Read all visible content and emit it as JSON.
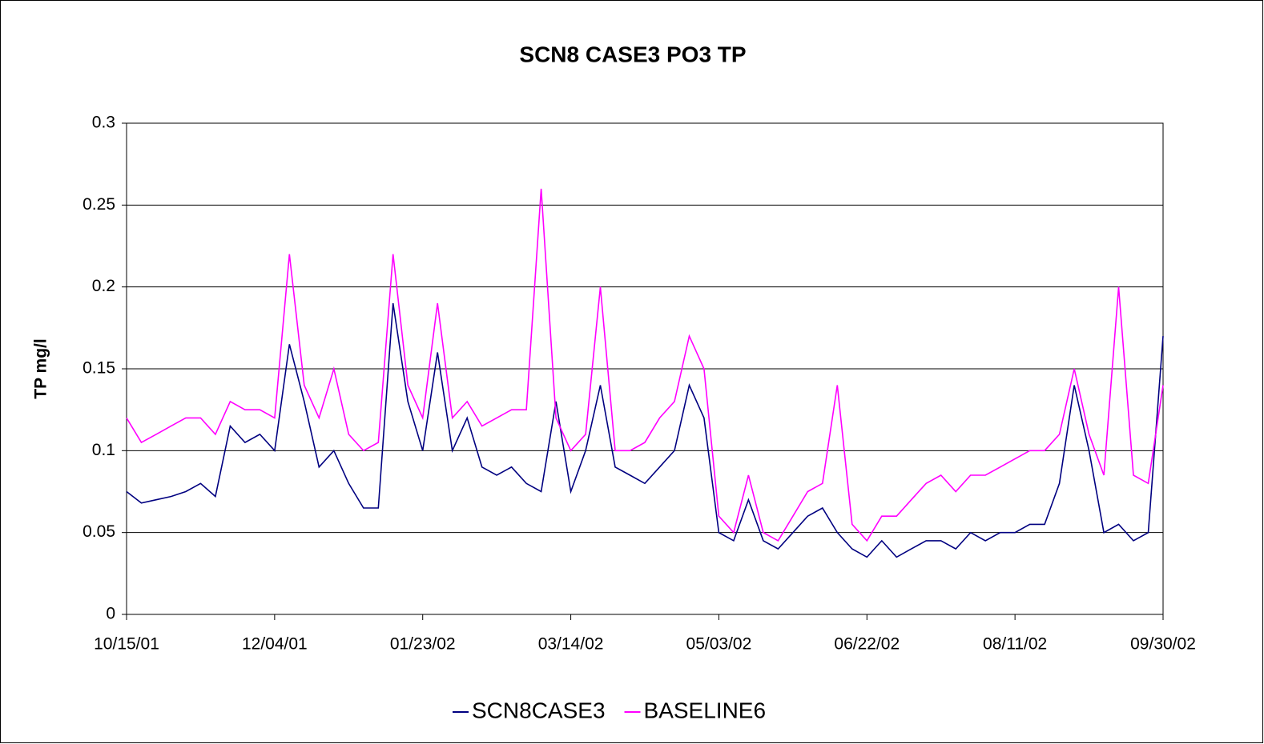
{
  "chart_data": {
    "type": "line",
    "title": "SCN8 CASE3 PO3 TP",
    "ylabel": "TP mg/l",
    "x": [
      "10/15/01",
      "10/20/01",
      "10/25/01",
      "10/30/01",
      "11/04/01",
      "11/09/01",
      "11/14/01",
      "11/19/01",
      "11/24/01",
      "11/29/01",
      "12/04/01",
      "12/09/01",
      "12/14/01",
      "12/19/01",
      "12/24/01",
      "12/29/01",
      "01/03/02",
      "01/08/02",
      "01/13/02",
      "01/18/02",
      "01/23/02",
      "01/28/02",
      "02/02/02",
      "02/07/02",
      "02/12/02",
      "02/17/02",
      "02/22/02",
      "02/27/02",
      "03/04/02",
      "03/09/02",
      "03/14/02",
      "03/19/02",
      "03/24/02",
      "03/29/02",
      "04/03/02",
      "04/08/02",
      "04/13/02",
      "04/18/02",
      "04/23/02",
      "04/28/02",
      "05/03/02",
      "05/08/02",
      "05/13/02",
      "05/18/02",
      "05/23/02",
      "05/28/02",
      "06/02/02",
      "06/07/02",
      "06/12/02",
      "06/17/02",
      "06/22/02",
      "06/27/02",
      "07/02/02",
      "07/07/02",
      "07/12/02",
      "07/17/02",
      "07/22/02",
      "07/27/02",
      "08/01/02",
      "08/06/02",
      "08/11/02",
      "08/16/02",
      "08/21/02",
      "08/26/02",
      "08/31/02",
      "09/05/02",
      "09/10/02",
      "09/15/02",
      "09/20/02",
      "09/25/02",
      "09/30/02"
    ],
    "series": [
      {
        "name": "SCN8CASE3",
        "color": "#000080",
        "values": [
          0.075,
          0.068,
          0.07,
          0.072,
          0.075,
          0.08,
          0.072,
          0.115,
          0.105,
          0.11,
          0.1,
          0.165,
          0.13,
          0.09,
          0.1,
          0.08,
          0.065,
          0.065,
          0.19,
          0.13,
          0.1,
          0.16,
          0.1,
          0.12,
          0.09,
          0.085,
          0.09,
          0.08,
          0.075,
          0.13,
          0.075,
          0.1,
          0.14,
          0.09,
          0.085,
          0.08,
          0.09,
          0.1,
          0.14,
          0.12,
          0.05,
          0.045,
          0.07,
          0.045,
          0.04,
          0.05,
          0.06,
          0.065,
          0.05,
          0.04,
          0.035,
          0.045,
          0.035,
          0.04,
          0.045,
          0.045,
          0.04,
          0.05,
          0.045,
          0.05,
          0.05,
          0.055,
          0.055,
          0.08,
          0.14,
          0.1,
          0.05,
          0.055,
          0.045,
          0.05,
          0.17
        ]
      },
      {
        "name": "BASELINE6",
        "color": "#ff00ff",
        "values": [
          0.12,
          0.105,
          0.11,
          0.115,
          0.12,
          0.12,
          0.11,
          0.13,
          0.125,
          0.125,
          0.12,
          0.22,
          0.14,
          0.12,
          0.15,
          0.11,
          0.1,
          0.105,
          0.22,
          0.14,
          0.12,
          0.19,
          0.12,
          0.13,
          0.115,
          0.12,
          0.125,
          0.125,
          0.26,
          0.12,
          0.1,
          0.11,
          0.2,
          0.1,
          0.1,
          0.105,
          0.12,
          0.13,
          0.17,
          0.15,
          0.06,
          0.05,
          0.085,
          0.05,
          0.045,
          0.06,
          0.075,
          0.08,
          0.14,
          0.055,
          0.045,
          0.06,
          0.06,
          0.07,
          0.08,
          0.085,
          0.075,
          0.085,
          0.085,
          0.09,
          0.095,
          0.1,
          0.1,
          0.11,
          0.15,
          0.11,
          0.085,
          0.2,
          0.085,
          0.08,
          0.14
        ]
      }
    ],
    "xlim": [
      "10/15/01",
      "09/30/02"
    ],
    "xticks": [
      "10/15/01",
      "12/04/01",
      "01/23/02",
      "03/14/02",
      "05/03/02",
      "06/22/02",
      "08/11/02",
      "09/30/02"
    ],
    "ylim": [
      0,
      0.3
    ],
    "yticks": [
      0,
      0.05,
      0.1,
      0.15,
      0.2,
      0.25,
      0.3
    ],
    "grid": true
  }
}
